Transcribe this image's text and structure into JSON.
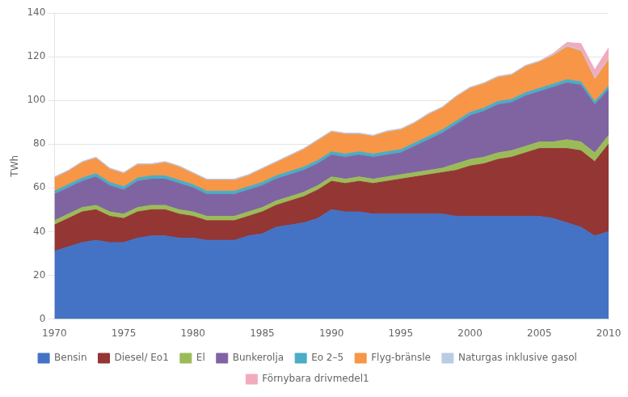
{
  "chart_data": {
    "type": "area",
    "stacked": true,
    "grid": true,
    "legend": "bottom",
    "ylabel": "TWh",
    "x": [
      1970,
      1971,
      1972,
      1973,
      1974,
      1975,
      1976,
      1977,
      1978,
      1979,
      1980,
      1981,
      1982,
      1983,
      1984,
      1985,
      1986,
      1987,
      1988,
      1989,
      1990,
      1991,
      1992,
      1993,
      1994,
      1995,
      1996,
      1997,
      1998,
      1999,
      2000,
      2001,
      2002,
      2003,
      2004,
      2005,
      2006,
      2007,
      2008,
      2009,
      2010
    ],
    "xlim": [
      1970,
      2010
    ],
    "xticks": [
      1970,
      1975,
      1980,
      1985,
      1990,
      1995,
      2000,
      2005,
      2010
    ],
    "ylim": [
      0,
      140
    ],
    "yticks": [
      0,
      20,
      40,
      60,
      80,
      100,
      120,
      140
    ],
    "series": [
      {
        "name": "Bensin",
        "color": "#4472C4",
        "values": [
          31,
          33,
          35,
          36,
          35,
          35,
          37,
          38,
          38,
          37,
          37,
          36,
          36,
          36,
          38,
          39,
          42,
          43,
          44,
          46,
          50,
          49,
          49,
          48,
          48,
          48,
          48,
          48,
          48,
          47,
          47,
          47,
          47,
          47,
          47,
          47,
          46,
          44,
          42,
          38,
          40
        ]
      },
      {
        "name": "Diesel/ Eo1",
        "color": "#943634",
        "values": [
          12,
          13,
          14,
          14,
          12,
          11,
          12,
          12,
          12,
          11,
          10,
          9,
          9,
          9,
          9,
          10,
          10,
          11,
          12,
          13,
          13,
          13,
          14,
          14,
          15,
          16,
          17,
          18,
          19,
          21,
          23,
          24,
          26,
          27,
          29,
          31,
          32,
          34,
          35,
          34,
          40
        ]
      },
      {
        "name": "El",
        "color": "#9BBB59",
        "values": [
          2,
          2,
          2,
          2,
          2,
          2,
          2,
          2,
          2,
          2,
          2,
          2,
          2,
          2,
          2,
          2,
          2,
          2,
          2,
          2,
          2,
          2,
          2,
          2,
          2,
          2,
          2,
          2,
          2,
          3,
          3,
          3,
          3,
          3,
          3,
          3,
          3,
          4,
          4,
          4,
          4
        ]
      },
      {
        "name": "Bunkerolja",
        "color": "#8064A2",
        "values": [
          12,
          12,
          12,
          13,
          12,
          11,
          12,
          12,
          12,
          12,
          11,
          10,
          10,
          10,
          10,
          10,
          10,
          10,
          10,
          10,
          10,
          10,
          10,
          10,
          10,
          10,
          12,
          14,
          16,
          18,
          20,
          21,
          22,
          22,
          23,
          23,
          25,
          26,
          26,
          22,
          21
        ]
      },
      {
        "name": "Eo 2–5",
        "color": "#4BACC6",
        "values": [
          1.5,
          1.5,
          1.5,
          1.5,
          1.5,
          1.5,
          1.5,
          1.5,
          1.5,
          1.5,
          1.5,
          1.5,
          1.5,
          1.5,
          1.5,
          1.5,
          1.5,
          1.5,
          1.5,
          1.5,
          1.5,
          1.5,
          1.5,
          1.5,
          1.5,
          1.5,
          1.5,
          1.5,
          1.5,
          1.5,
          1.5,
          1.5,
          1.5,
          1.5,
          1.5,
          1.5,
          1.5,
          1.5,
          1.5,
          1.5,
          1.5
        ]
      },
      {
        "name": "Flyg-bränsle",
        "color": "#F79646",
        "values": [
          6,
          6,
          7,
          7,
          6,
          6,
          6,
          5,
          6,
          6,
          5,
          5,
          5,
          5,
          5,
          6,
          6,
          7,
          8,
          9,
          9,
          9,
          8,
          8,
          9,
          9,
          9,
          10,
          10,
          11,
          11,
          11,
          11,
          11,
          12,
          12,
          13,
          15,
          14,
          10,
          12
        ]
      },
      {
        "name": "Naturgas inklusive gasol",
        "color": "#B8CCE4",
        "values": [
          0.5,
          0.5,
          0.5,
          0.5,
          0.5,
          0.5,
          0.5,
          0.5,
          0.5,
          0.5,
          0.5,
          0.5,
          0.5,
          0.5,
          0.5,
          0.5,
          0.5,
          0.5,
          0.5,
          0.5,
          0.5,
          0.5,
          0.5,
          0.5,
          0.5,
          0.5,
          0.5,
          0.5,
          0.5,
          0.5,
          0.5,
          0.5,
          0.5,
          0.5,
          0.5,
          0.5,
          0.5,
          0.5,
          0.5,
          0.5,
          0.5
        ]
      },
      {
        "name": "Förnybara drivmedel1",
        "color": "#F2ABBE",
        "values": [
          0,
          0,
          0,
          0,
          0,
          0,
          0,
          0,
          0,
          0,
          0,
          0,
          0,
          0,
          0,
          0,
          0,
          0,
          0,
          0,
          0,
          0,
          0,
          0,
          0,
          0,
          0,
          0,
          0,
          0,
          0,
          0,
          0,
          0,
          0,
          0,
          0.5,
          1.5,
          3,
          4,
          5
        ]
      }
    ]
  }
}
